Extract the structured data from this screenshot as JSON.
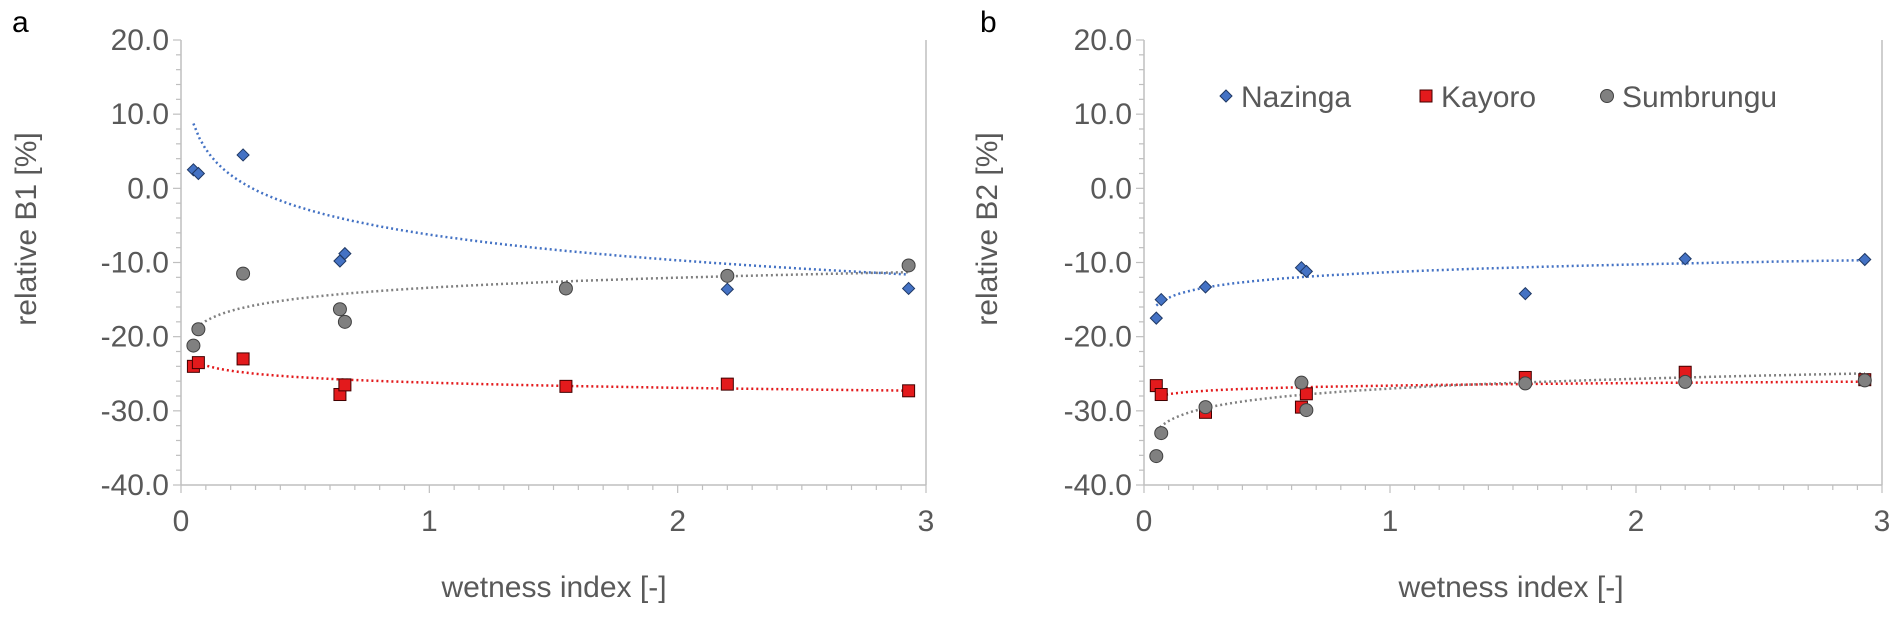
{
  "chart_data": [
    {
      "type": "scatter",
      "panel": "a",
      "title": "",
      "xlabel": "wetness index [-]",
      "ylabel": "relative B1 [%]",
      "xlim": [
        0,
        3
      ],
      "ylim": [
        -40,
        20
      ],
      "xticks": [
        0,
        1,
        2,
        3
      ],
      "xtick_labels": [
        "0",
        "1",
        "2",
        "3"
      ],
      "yticks": [
        20,
        10,
        0,
        -10,
        -20,
        -30,
        -40
      ],
      "ytick_labels": [
        "20.0",
        "10.0",
        "0.0",
        "-10.0",
        "-20.0",
        "-30.0",
        "-40.0"
      ],
      "grid": false,
      "series": [
        {
          "name": "Nazinga",
          "marker": "diamond",
          "color": "#4472c4",
          "x": [
            0.05,
            0.07,
            0.25,
            0.64,
            0.66,
            2.2,
            2.93
          ],
          "y": [
            2.5,
            2.0,
            4.5,
            -9.8,
            -8.8,
            -13.6,
            -13.5
          ],
          "trend": {
            "a": -6.24,
            "b": -5.0
          }
        },
        {
          "name": "Kayoro",
          "marker": "square",
          "color": "#e31a1c",
          "x": [
            0.05,
            0.07,
            0.25,
            0.64,
            0.66,
            1.55,
            2.2,
            2.93
          ],
          "y": [
            -24.0,
            -23.5,
            -23.0,
            -27.8,
            -26.5,
            -26.7,
            -26.4,
            -27.3
          ],
          "trend": {
            "a": -26.2,
            "b": -1.0
          }
        },
        {
          "name": "Sumbrungu",
          "marker": "circle",
          "color": "#808080",
          "x": [
            0.05,
            0.07,
            0.25,
            0.64,
            0.66,
            1.55,
            2.2,
            2.93
          ],
          "y": [
            -21.2,
            -19.0,
            -11.5,
            -16.3,
            -18.0,
            -13.5,
            -11.8,
            -10.4
          ],
          "trend": {
            "a": -13.4,
            "b": 1.95
          }
        }
      ]
    },
    {
      "type": "scatter",
      "panel": "b",
      "title": "",
      "xlabel": "wetness index [-]",
      "ylabel": "relative B2 [%]",
      "xlim": [
        0,
        3
      ],
      "ylim": [
        -40,
        20
      ],
      "xticks": [
        0,
        1,
        2,
        3
      ],
      "xtick_labels": [
        "0",
        "1",
        "2",
        "3"
      ],
      "yticks": [
        20,
        10,
        0,
        -10,
        -20,
        -30,
        -40
      ],
      "ytick_labels": [
        "20.0",
        "10.0",
        "0.0",
        "-10.0",
        "-20.0",
        "-30.0",
        "-40.0"
      ],
      "grid": false,
      "legend": {
        "position": "top",
        "entries": [
          "Nazinga",
          "Kayoro",
          "Sumbrungu"
        ]
      },
      "series": [
        {
          "name": "Nazinga",
          "marker": "diamond",
          "color": "#4472c4",
          "x": [
            0.05,
            0.07,
            0.25,
            0.64,
            0.66,
            1.55,
            2.2,
            2.93
          ],
          "y": [
            -17.5,
            -15.0,
            -13.3,
            -10.7,
            -11.2,
            -14.2,
            -9.5,
            -9.6
          ],
          "trend": {
            "a": -11.3,
            "b": 1.5
          }
        },
        {
          "name": "Kayoro",
          "marker": "square",
          "color": "#e31a1c",
          "x": [
            0.05,
            0.07,
            0.25,
            0.64,
            0.66,
            1.55,
            2.2,
            2.93
          ],
          "y": [
            -26.6,
            -27.8,
            -30.2,
            -29.5,
            -27.7,
            -25.5,
            -24.8,
            -25.8
          ],
          "trend": {
            "a": -26.6,
            "b": 0.5
          }
        },
        {
          "name": "Sumbrungu",
          "marker": "circle",
          "color": "#808080",
          "x": [
            0.05,
            0.07,
            0.25,
            0.64,
            0.66,
            1.55,
            2.2,
            2.93
          ],
          "y": [
            -36.1,
            -33.0,
            -29.5,
            -26.2,
            -29.9,
            -26.3,
            -26.1,
            -25.9
          ],
          "trend": {
            "a": -27.0,
            "b": 1.9
          }
        }
      ]
    }
  ]
}
